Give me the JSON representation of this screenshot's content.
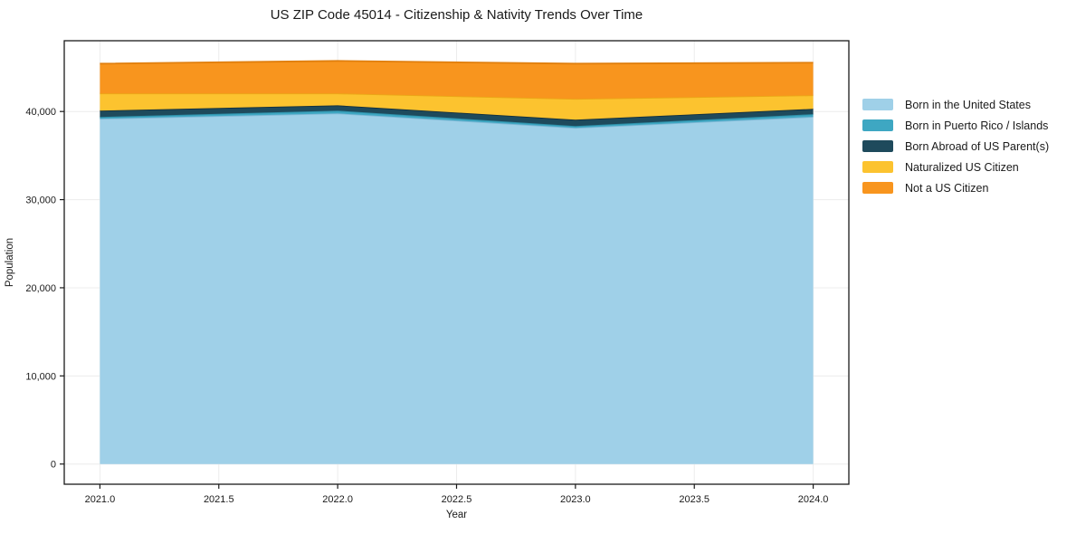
{
  "title": "US ZIP Code 45014 - Citizenship & Nativity Trends Over Time",
  "chart_data": {
    "type": "area",
    "stacked": true,
    "title": "US ZIP Code 45014 - Citizenship & Nativity Trends Over Time",
    "xlabel": "Year",
    "ylabel": "Population",
    "x": [
      2021,
      2022,
      2023,
      2024
    ],
    "series": [
      {
        "name": "Born in the United States",
        "color": "#9fd0e8",
        "edge_color": "#7fb8d6",
        "values": [
          39180,
          39790,
          38150,
          39400
        ]
      },
      {
        "name": "Born in Puerto Rico / Islands",
        "color": "#3ea7c2",
        "edge_color": "#2e8fa8",
        "values": [
          200,
          310,
          200,
          300
        ]
      },
      {
        "name": "Born Abroad of US Parent(s)",
        "color": "#1e4a5c",
        "edge_color": "#132f3c",
        "values": [
          720,
          600,
          720,
          600
        ]
      },
      {
        "name": "Naturalized US Citizen",
        "color": "#fcc32f",
        "edge_color": "#eaa816",
        "values": [
          1950,
          1350,
          2360,
          1540
        ]
      },
      {
        "name": "Not a US Citizen",
        "color": "#f8951e",
        "edge_color": "#e07f0e",
        "values": [
          3380,
          3690,
          4000,
          3700
        ]
      }
    ],
    "xlim": [
      2020.85,
      2024.15
    ],
    "ylim": [
      -2290,
      48030
    ],
    "xticks": {
      "values": [
        2021.0,
        2021.5,
        2022.0,
        2022.5,
        2023.0,
        2023.5,
        2024.0
      ],
      "labels": [
        "2021.0",
        "2021.5",
        "2022.0",
        "2022.5",
        "2023.0",
        "2023.5",
        "2024.0"
      ]
    },
    "yticks": {
      "values": [
        0,
        10000,
        20000,
        30000,
        40000
      ],
      "labels": [
        "0",
        "10,000",
        "20,000",
        "30,000",
        "40,000"
      ]
    },
    "grid": true,
    "grid_color": "#ececec",
    "frame_color": "#1a1a1a",
    "legend_position": "right outside"
  }
}
